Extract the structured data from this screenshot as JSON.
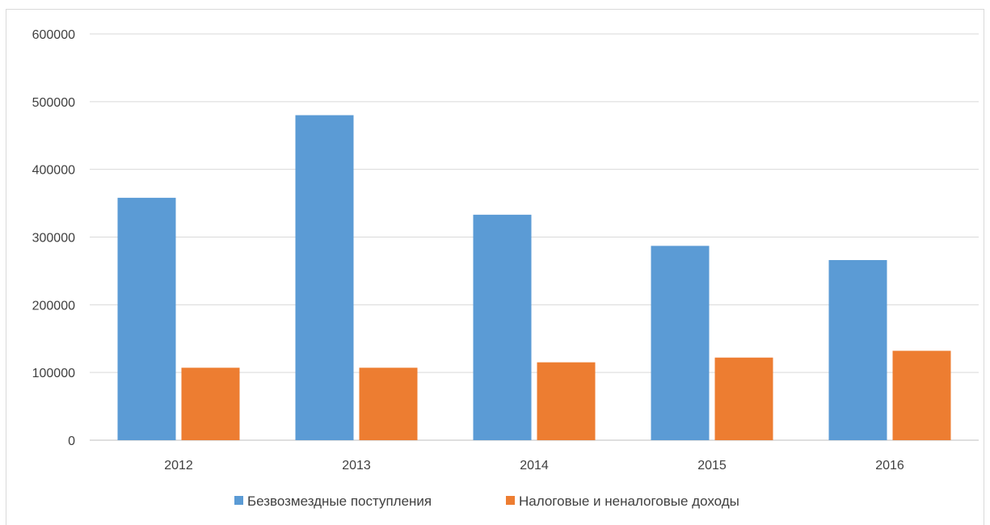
{
  "chart_data": {
    "type": "bar",
    "categories": [
      "2012",
      "2013",
      "2014",
      "2015",
      "2016"
    ],
    "series": [
      {
        "name": "Безвозмездные поступления",
        "color": "#5B9BD5",
        "values": [
          358000,
          480000,
          333000,
          287000,
          266000
        ]
      },
      {
        "name": "Налоговые и неналоговые доходы",
        "color": "#ED7D31",
        "values": [
          107000,
          107000,
          115000,
          122000,
          132000
        ]
      }
    ],
    "ylim": [
      0,
      600000
    ],
    "yticks": [
      "0",
      "100000",
      "200000",
      "300000",
      "400000",
      "500000",
      "600000"
    ],
    "grid": true,
    "legend_position": "bottom"
  }
}
